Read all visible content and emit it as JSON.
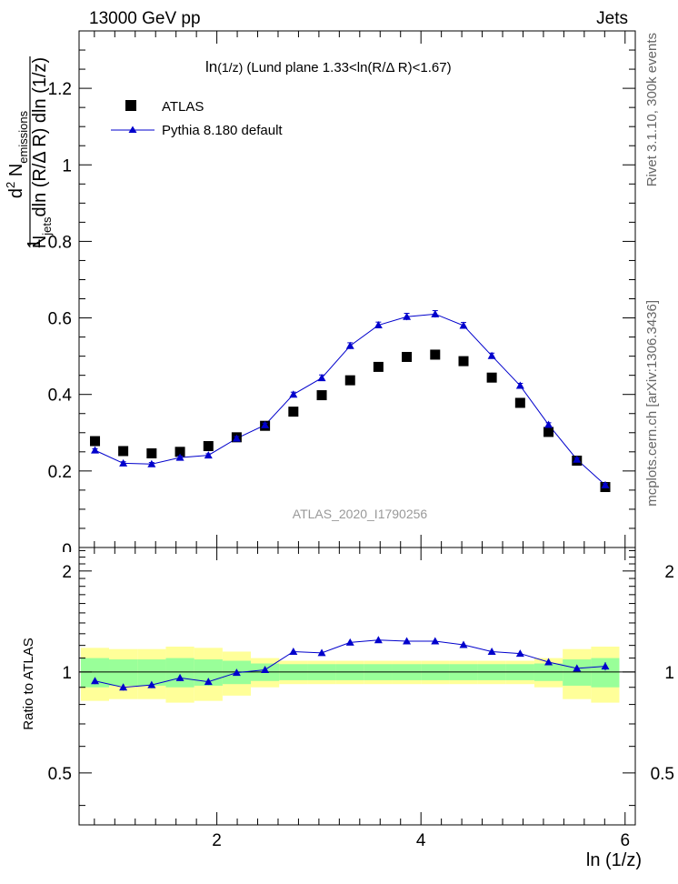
{
  "header": {
    "left": "13000 GeV pp",
    "right": "Jets"
  },
  "side_labels": {
    "rivet": "Rivet 3.1.10,  300k events",
    "mcplots": "mcplots.cern.ch [arXiv:1306.3436]"
  },
  "watermark": "ATLAS_2020_I1790256",
  "title": {
    "part1": "ln",
    "part2": "(1/z)",
    "part3": " (Lund plane 1.33<ln(R/",
    "part4": "Δ",
    "part5": " R)<1.67)"
  },
  "ylabel_main": {
    "one": "1",
    "d2": "d",
    "sup2": "2",
    "N": " N",
    "emissions": "emissions",
    "den_N": "N",
    "den_jets": "jets",
    "den_rest": "dln (R/Δ R) dln (1/z)"
  },
  "ylabel_ratio": "Ratio to ATLAS",
  "xlabel": "ln (1/z)",
  "legend": {
    "atlas": "ATLAS",
    "pythia": "Pythia 8.180 default"
  },
  "colors": {
    "mc": "#0000cc",
    "data": "#000000",
    "band_inner": "#99ff99",
    "band_outer": "#ffff99"
  },
  "chart_data": {
    "type": "scatter",
    "xlim": [
      0.65,
      6.1
    ],
    "ylim": [
      0,
      1.35
    ],
    "ratio_ylim": [
      0.35,
      2.35
    ],
    "x_ticks": [
      2,
      4,
      6
    ],
    "y_ticks": [
      0.2,
      0.4,
      0.6,
      0.8,
      1,
      1.2
    ],
    "y_tick_labels": [
      "0.2",
      "0.4",
      "0.6",
      "0.8",
      "1",
      "1.2"
    ],
    "ratio_ticks": [
      0.5,
      1,
      2
    ],
    "ratio_tick_labels": [
      "0.5",
      "1",
      "2"
    ],
    "x_edges": [
      0.667,
      0.944,
      1.222,
      1.5,
      1.778,
      2.056,
      2.333,
      2.611,
      2.889,
      3.167,
      3.444,
      3.722,
      4.0,
      4.278,
      4.556,
      4.833,
      5.111,
      5.389,
      5.667,
      5.944
    ],
    "x": [
      0.806,
      1.083,
      1.361,
      1.639,
      1.917,
      2.194,
      2.472,
      2.75,
      3.028,
      3.306,
      3.583,
      3.861,
      4.139,
      4.417,
      4.694,
      4.972,
      5.25,
      5.528,
      5.806
    ],
    "series": [
      {
        "name": "ATLAS",
        "marker": "square",
        "values": [
          0.278,
          0.252,
          0.246,
          0.25,
          0.265,
          0.288,
          0.318,
          0.355,
          0.398,
          0.437,
          0.472,
          0.498,
          0.504,
          0.487,
          0.444,
          0.378,
          0.302,
          0.227,
          0.158
        ]
      },
      {
        "name": "Pythia 8.180 default",
        "marker": "triangle",
        "values": [
          0.254,
          0.22,
          0.218,
          0.235,
          0.241,
          0.285,
          0.32,
          0.4,
          0.443,
          0.527,
          0.581,
          0.603,
          0.61,
          0.58,
          0.501,
          0.423,
          0.321,
          0.23,
          0.163
        ],
        "errors": [
          0.004,
          0.004,
          0.004,
          0.004,
          0.004,
          0.005,
          0.005,
          0.006,
          0.008,
          0.008,
          0.008,
          0.009,
          0.009,
          0.008,
          0.007,
          0.006,
          0.005,
          0.004,
          0.004
        ]
      }
    ],
    "ratio": {
      "values": [
        0.94,
        0.9,
        0.915,
        0.96,
        0.935,
        0.995,
        1.015,
        1.15,
        1.14,
        1.225,
        1.245,
        1.235,
        1.235,
        1.205,
        1.15,
        1.135,
        1.07,
        1.025,
        1.04
      ],
      "errors": [
        0.02,
        0.02,
        0.02,
        0.02,
        0.02,
        0.02,
        0.02,
        0.02,
        0.02,
        0.02,
        0.02,
        0.02,
        0.02,
        0.02,
        0.02,
        0.02,
        0.02,
        0.02,
        0.03
      ],
      "band_inner": [
        0.1,
        0.09,
        0.09,
        0.1,
        0.09,
        0.08,
        0.06,
        0.055,
        0.055,
        0.055,
        0.055,
        0.055,
        0.055,
        0.055,
        0.055,
        0.055,
        0.06,
        0.09,
        0.1
      ],
      "band_outer": [
        0.18,
        0.17,
        0.17,
        0.19,
        0.18,
        0.15,
        0.1,
        0.08,
        0.08,
        0.08,
        0.08,
        0.08,
        0.08,
        0.08,
        0.08,
        0.08,
        0.1,
        0.17,
        0.19
      ]
    }
  }
}
